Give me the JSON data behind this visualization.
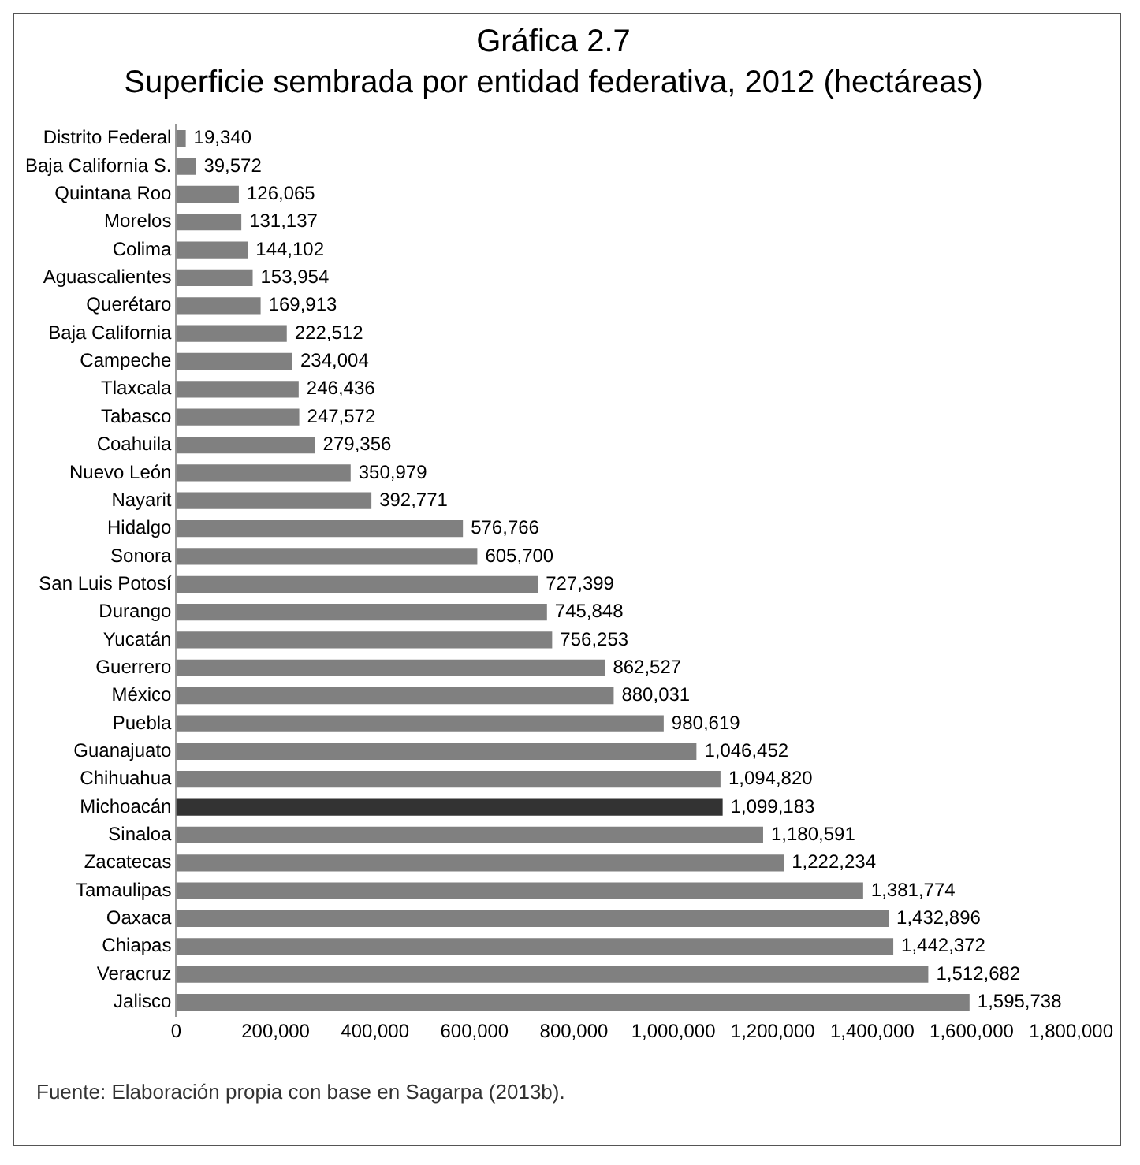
{
  "chart_data": {
    "type": "bar",
    "orientation": "horizontal",
    "title": "Gráfica 2.7",
    "subtitle": "Superficie sembrada por entidad federativa, 2012 (hectáreas)",
    "categories": [
      "Distrito Federal",
      "Baja California S.",
      "Quintana Roo",
      "Morelos",
      "Colima",
      "Aguascalientes",
      "Querétaro",
      "Baja California",
      "Campeche",
      "Tlaxcala",
      "Tabasco",
      "Coahuila",
      "Nuevo León",
      "Nayarit",
      "Hidalgo",
      "Sonora",
      "San Luis Potosí",
      "Durango",
      "Yucatán",
      "Guerrero",
      "México",
      "Puebla",
      "Guanajuato",
      "Chihuahua",
      "Michoacán",
      "Sinaloa",
      "Zacatecas",
      "Tamaulipas",
      "Oaxaca",
      "Chiapas",
      "Veracruz",
      "Jalisco"
    ],
    "values": [
      19340,
      39572,
      126065,
      131137,
      144102,
      153954,
      169913,
      222512,
      234004,
      246436,
      247572,
      279356,
      350979,
      392771,
      576766,
      605700,
      727399,
      745848,
      756253,
      862527,
      880031,
      980619,
      1046452,
      1094820,
      1099183,
      1180591,
      1222234,
      1381774,
      1432896,
      1442372,
      1512682,
      1595738
    ],
    "colors": [
      "#808080",
      "#808080",
      "#808080",
      "#808080",
      "#808080",
      "#808080",
      "#808080",
      "#808080",
      "#808080",
      "#808080",
      "#808080",
      "#808080",
      "#808080",
      "#808080",
      "#808080",
      "#808080",
      "#808080",
      "#808080",
      "#808080",
      "#808080",
      "#808080",
      "#808080",
      "#808080",
      "#808080",
      "#333333",
      "#808080",
      "#808080",
      "#808080",
      "#808080",
      "#808080",
      "#808080",
      "#808080"
    ],
    "xlim": [
      0,
      1800000
    ],
    "xticks": [
      0,
      {
        "value": 200000,
        "label": "200,000"
      },
      {
        "value": 400000,
        "label": "400,000"
      },
      {
        "value": 600000,
        "label": "600,000"
      },
      {
        "value": 800000,
        "label": "800,000"
      },
      {
        "value": 1000000,
        "label": "1,000,000"
      },
      {
        "value": 1200000,
        "label": "1,200,000"
      },
      {
        "value": 1400000,
        "label": "1,400,000"
      },
      {
        "value": 1600000,
        "label": "1,600,000"
      },
      {
        "value": 1800000,
        "label": "1,800,000"
      }
    ],
    "value_labels": [
      "19,340",
      "39,572",
      "126,065",
      "131,137",
      "144,102",
      "153,954",
      "169,913",
      "222,512",
      "234,004",
      "246,436",
      "247,572",
      "279,356",
      "350,979",
      "392,771",
      "576,766",
      "605,700",
      "727,399",
      "745,848",
      "756,253",
      "862,527",
      "880,031",
      "980,619",
      "1,046,452",
      "1,094,820",
      "1,099,183",
      "1,180,591",
      "1,222,234",
      "1,381,774",
      "1,432,896",
      "1,442,372",
      "1,512,682",
      "1,595,738"
    ],
    "grid": false,
    "legend": false,
    "annotations": [
      "Fuente: Elaboración propia con base en Sagarpa (2013b)."
    ]
  }
}
